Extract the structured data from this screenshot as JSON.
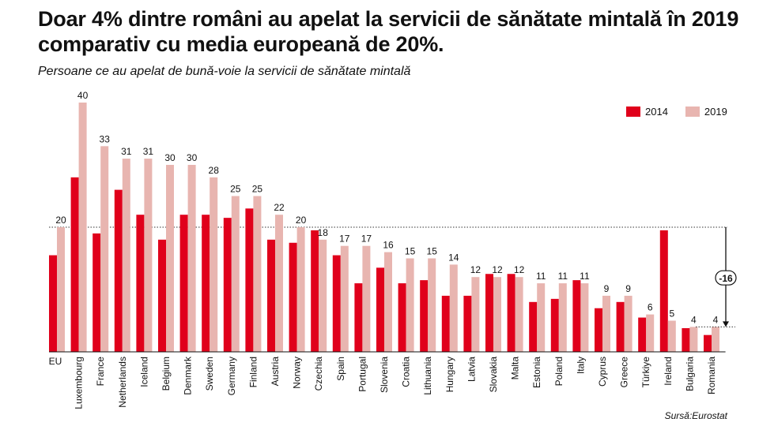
{
  "header": {
    "title": "Doar 4% dintre români au apelat la servicii de sănătate mintală în 2019 comparativ cu media europeană de 20%.",
    "subtitle": "Persoane ce au apelat de bună-voie la servicii de sănătate mintală",
    "source": "Sursă:Eurostat"
  },
  "chart_data": {
    "type": "bar",
    "title": "Doar 4% dintre români au apelat la servicii de sănătate mintală în 2019 comparativ cu media europeană de 20%.",
    "subtitle": "Persoane ce au apelat de bună-voie la servicii de sănătate mintală",
    "categories": [
      "EU",
      "Luxembourg",
      "France",
      "Netherlands",
      "Iceland",
      "Belgium",
      "Denmark",
      "Sweden",
      "Germany",
      "Finland",
      "Austria",
      "Norway",
      "Czechia",
      "Spain",
      "Portugal",
      "Slovenia",
      "Croatia",
      "Lithuania",
      "Hungary",
      "Latvia",
      "Slovakia",
      "Malta",
      "Estonia",
      "Poland",
      "Italy",
      "Cyprus",
      "Greece",
      "Türkiye",
      "Ireland",
      "Bulgaria",
      "Romania"
    ],
    "series": [
      {
        "name": "2014",
        "color": "#e0001b",
        "values": [
          15.5,
          28,
          19,
          26,
          22,
          18,
          22,
          22,
          21.5,
          23,
          18,
          17.5,
          19.5,
          15.5,
          11,
          13.5,
          11,
          11.5,
          9,
          9,
          12.5,
          12.5,
          8,
          8.5,
          11.5,
          7,
          8,
          5.5,
          19.5,
          3.8,
          2.7
        ]
      },
      {
        "name": "2019",
        "color": "#e8b5b0",
        "values": [
          20,
          40,
          33,
          31,
          31,
          30,
          30,
          28,
          25,
          25,
          22,
          20,
          18,
          17,
          17,
          16,
          15,
          15,
          14,
          12,
          12,
          12,
          11,
          11,
          11,
          9,
          9,
          6,
          5,
          4,
          4
        ]
      }
    ],
    "ylim": [
      0,
      40
    ],
    "reference_line": {
      "value": 20
    },
    "annotation": {
      "label": "-16",
      "from": 20,
      "to": 4
    },
    "legend_position": "top-right",
    "grid": false
  }
}
